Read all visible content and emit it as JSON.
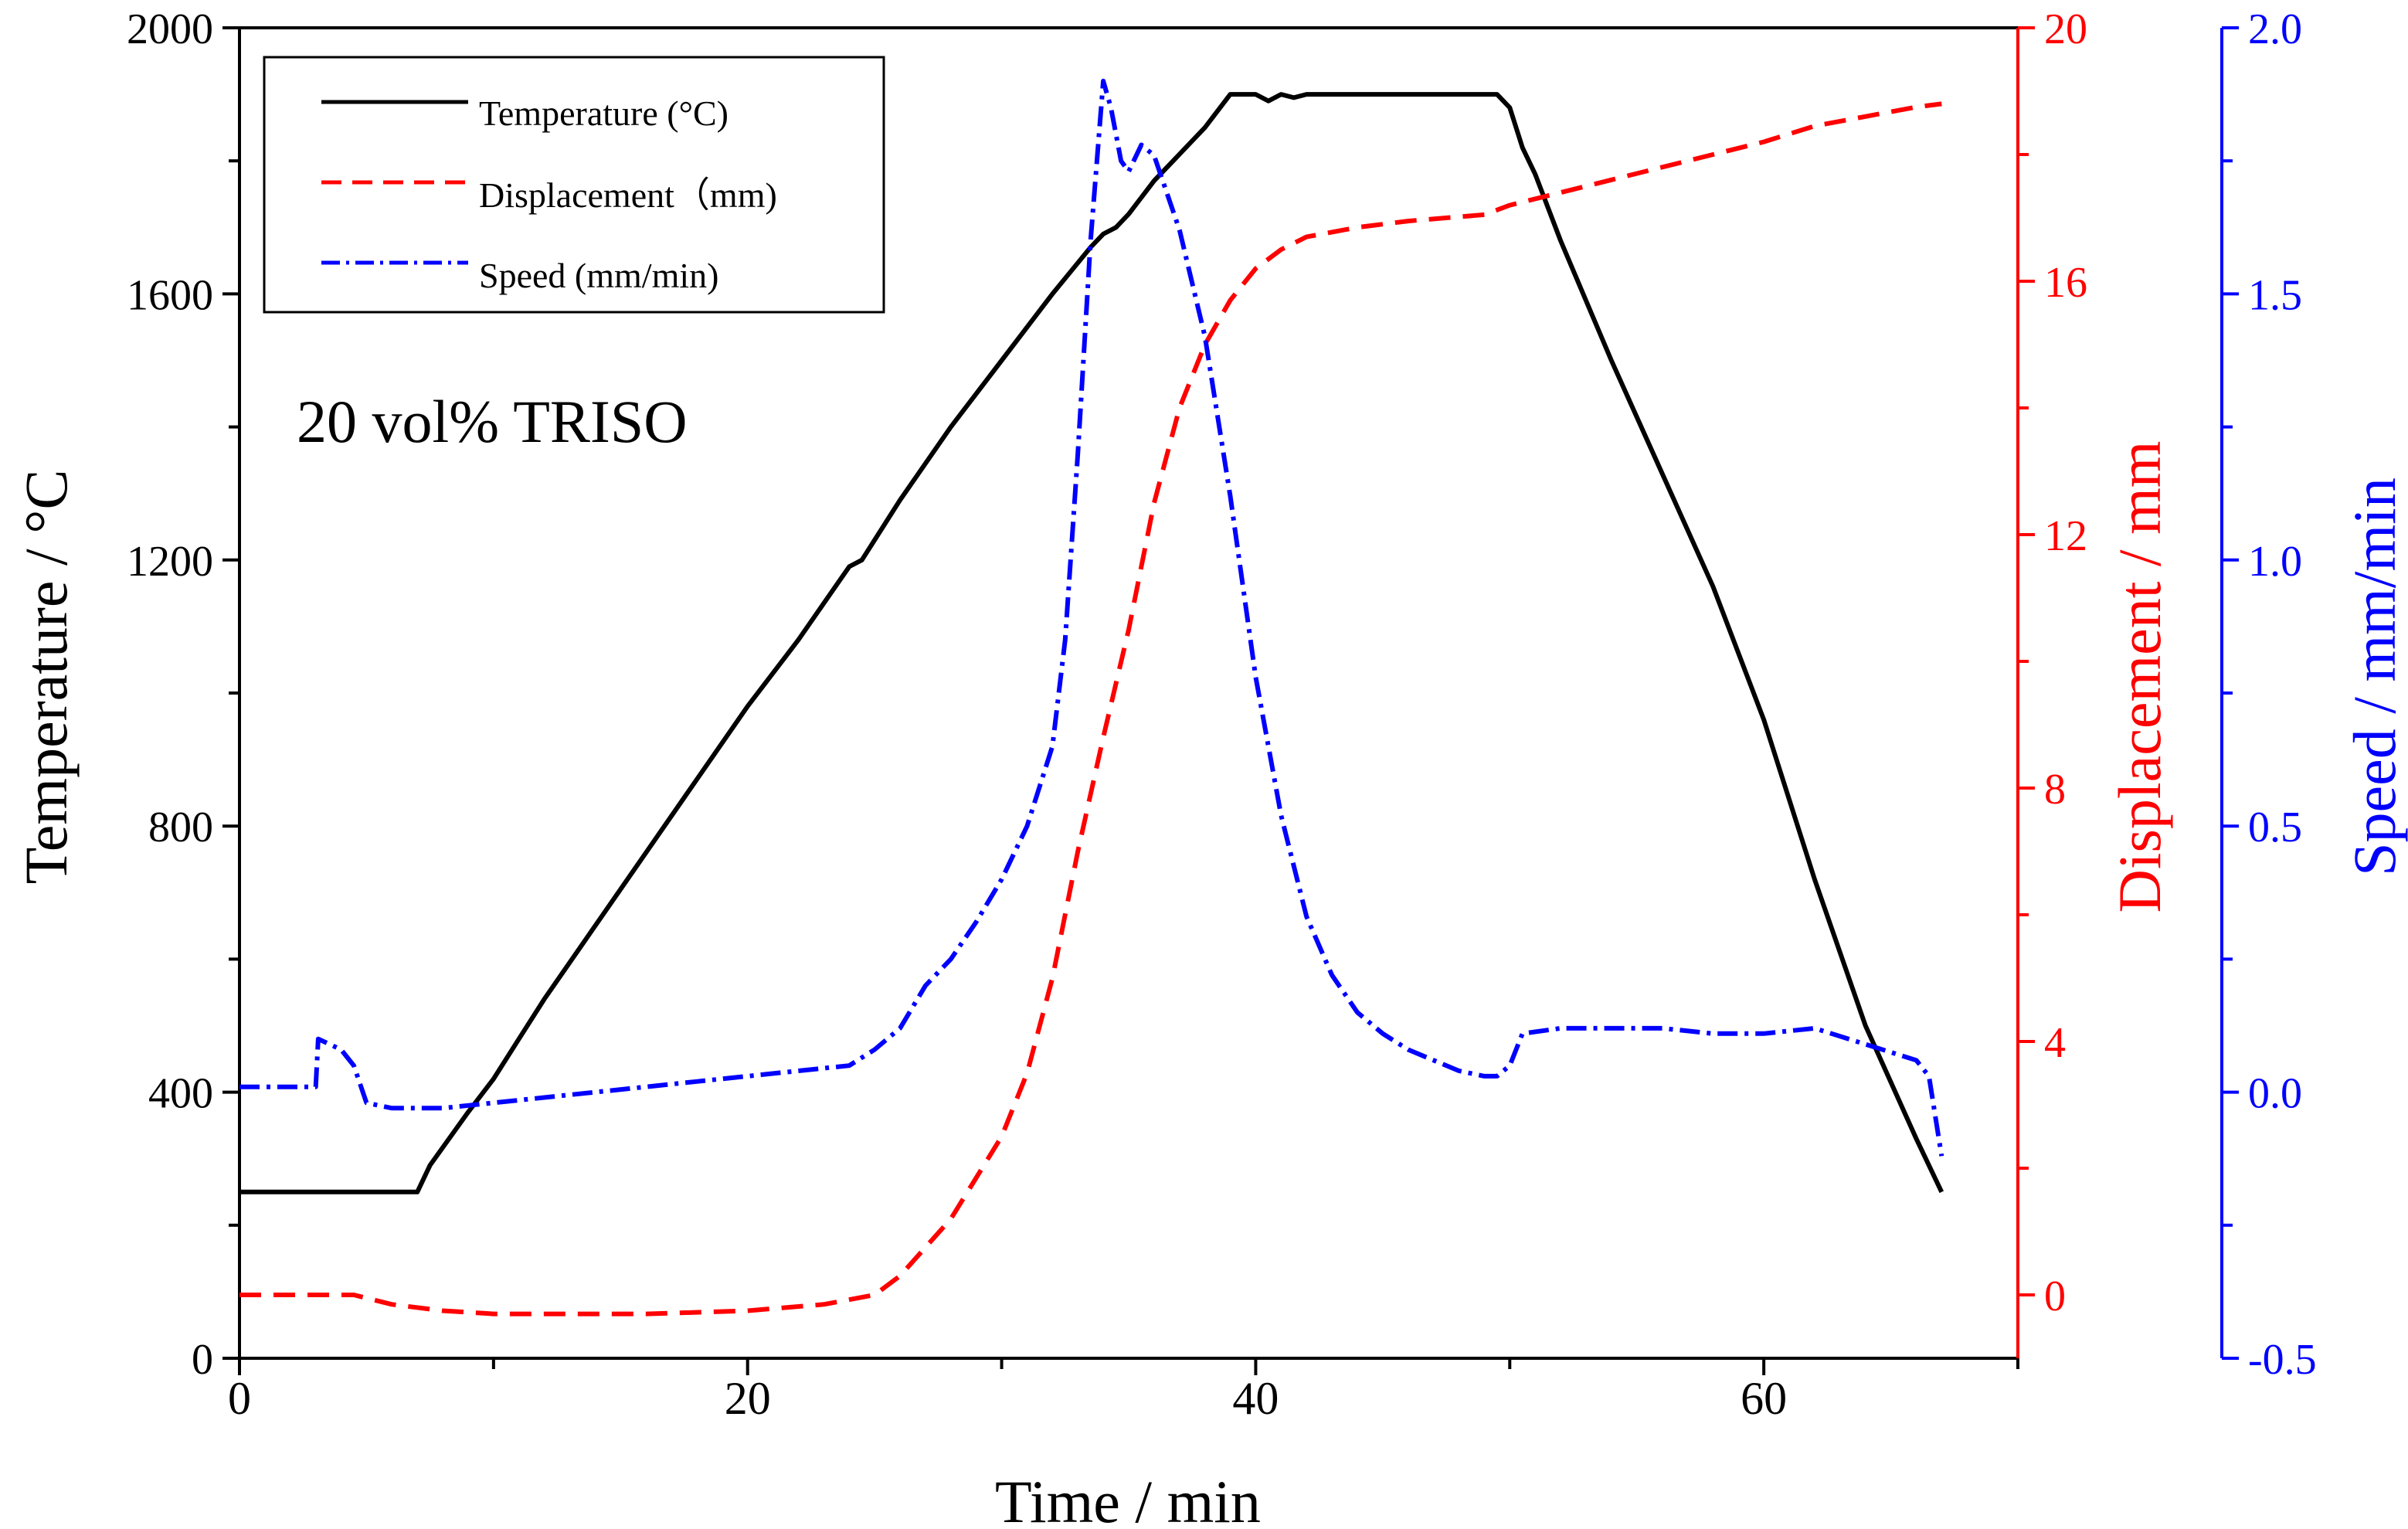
{
  "chart_data": {
    "type": "line",
    "annotation": "20 vol% TRISO",
    "xlabel": "Time / min",
    "xlim": [
      0,
      70
    ],
    "xticks": [
      0,
      20,
      40,
      60
    ],
    "axes": {
      "left": {
        "label": "Temperature / °C",
        "lim": [
          0,
          2000
        ],
        "ticks": [
          "0",
          "400",
          "800",
          "1200",
          "1600",
          "2000"
        ],
        "color": "#000000"
      },
      "right1": {
        "label": "Displacement / mm",
        "lim": [
          -1,
          20
        ],
        "ticks": [
          "0",
          "4",
          "8",
          "12",
          "16",
          "20"
        ],
        "color": "#ff0000"
      },
      "right2": {
        "label": "Speed / mm/min",
        "lim": [
          -0.5,
          2.0
        ],
        "ticks": [
          "-0.5",
          "0.0",
          "0.5",
          "1.0",
          "1.5",
          "2.0"
        ],
        "color": "#0000ff"
      }
    },
    "legend": {
      "placement": "top-left",
      "entries": [
        "Temperature (°C)",
        "Displacement（mm)",
        "Speed (mm/min)"
      ]
    },
    "series": [
      {
        "name": "Temperature (°C)",
        "axis": "left",
        "color": "#000000",
        "dash": "solid",
        "x": [
          0,
          7,
          7.5,
          9,
          10,
          11,
          12,
          14,
          16,
          18,
          20,
          22,
          24,
          24.5,
          25,
          26,
          28,
          30,
          32,
          33.5,
          34,
          34.5,
          35,
          36,
          37,
          38,
          39,
          40,
          40.5,
          41,
          41.5,
          42,
          43,
          45,
          48,
          49.5,
          50,
          50.5,
          51,
          52,
          54,
          56,
          58,
          60,
          62,
          64,
          66,
          67
        ],
        "y": [
          250,
          250,
          290,
          370,
          420,
          480,
          540,
          650,
          760,
          870,
          980,
          1080,
          1190,
          1200,
          1230,
          1290,
          1400,
          1500,
          1600,
          1670,
          1690,
          1700,
          1720,
          1770,
          1810,
          1850,
          1900,
          1900,
          1890,
          1900,
          1895,
          1900,
          1900,
          1900,
          1900,
          1900,
          1880,
          1820,
          1780,
          1680,
          1500,
          1330,
          1160,
          960,
          720,
          500,
          330,
          250
        ]
      },
      {
        "name": "Displacement（mm)",
        "axis": "right1",
        "color": "#ff0000",
        "dash": "dashed",
        "x": [
          0,
          2,
          4.5,
          6,
          8,
          10,
          12,
          16,
          20,
          23,
          25,
          26,
          28,
          30,
          31,
          32,
          33,
          34,
          35,
          36,
          37,
          38,
          39,
          40,
          41,
          42,
          44,
          46,
          49,
          50,
          52,
          54,
          56,
          58,
          60,
          62,
          64,
          66,
          67
        ],
        "y": [
          0,
          0,
          0,
          -0.15,
          -0.25,
          -0.3,
          -0.3,
          -0.3,
          -0.25,
          -0.15,
          0,
          0.3,
          1.2,
          2.5,
          3.5,
          5,
          7,
          8.8,
          10.5,
          12.5,
          14,
          15,
          15.7,
          16.2,
          16.5,
          16.7,
          16.85,
          16.95,
          17.05,
          17.2,
          17.4,
          17.6,
          17.8,
          18,
          18.2,
          18.45,
          18.6,
          18.75,
          18.8
        ]
      },
      {
        "name": "Speed (mm/min)",
        "axis": "right2",
        "color": "#0000ff",
        "dash": "dashdot",
        "x": [
          0,
          3,
          3.1,
          4,
          4.5,
          5,
          6,
          8,
          10,
          12,
          14,
          16,
          18,
          20,
          22,
          24,
          25,
          26,
          27,
          28,
          29,
          30,
          31,
          32,
          32.5,
          33,
          33.5,
          34,
          34.3,
          34.7,
          35,
          35.5,
          36,
          37,
          38,
          39,
          40,
          41,
          42,
          43,
          44,
          45,
          46,
          47,
          48,
          49,
          49.5,
          50,
          50.5,
          52,
          54,
          56,
          58,
          60,
          62,
          64,
          66,
          66.5,
          67
        ],
        "y": [
          0.01,
          0.01,
          0.1,
          0.08,
          0.05,
          -0.02,
          -0.03,
          -0.03,
          -0.02,
          -0.01,
          0,
          0.01,
          0.02,
          0.03,
          0.04,
          0.05,
          0.08,
          0.12,
          0.2,
          0.25,
          0.32,
          0.4,
          0.5,
          0.65,
          0.85,
          1.2,
          1.6,
          1.9,
          1.85,
          1.75,
          1.73,
          1.78,
          1.76,
          1.62,
          1.42,
          1.12,
          0.78,
          0.52,
          0.33,
          0.22,
          0.15,
          0.11,
          0.08,
          0.06,
          0.04,
          0.03,
          0.03,
          0.05,
          0.11,
          0.12,
          0.12,
          0.12,
          0.11,
          0.11,
          0.12,
          0.09,
          0.06,
          0.03,
          -0.12
        ]
      }
    ]
  }
}
